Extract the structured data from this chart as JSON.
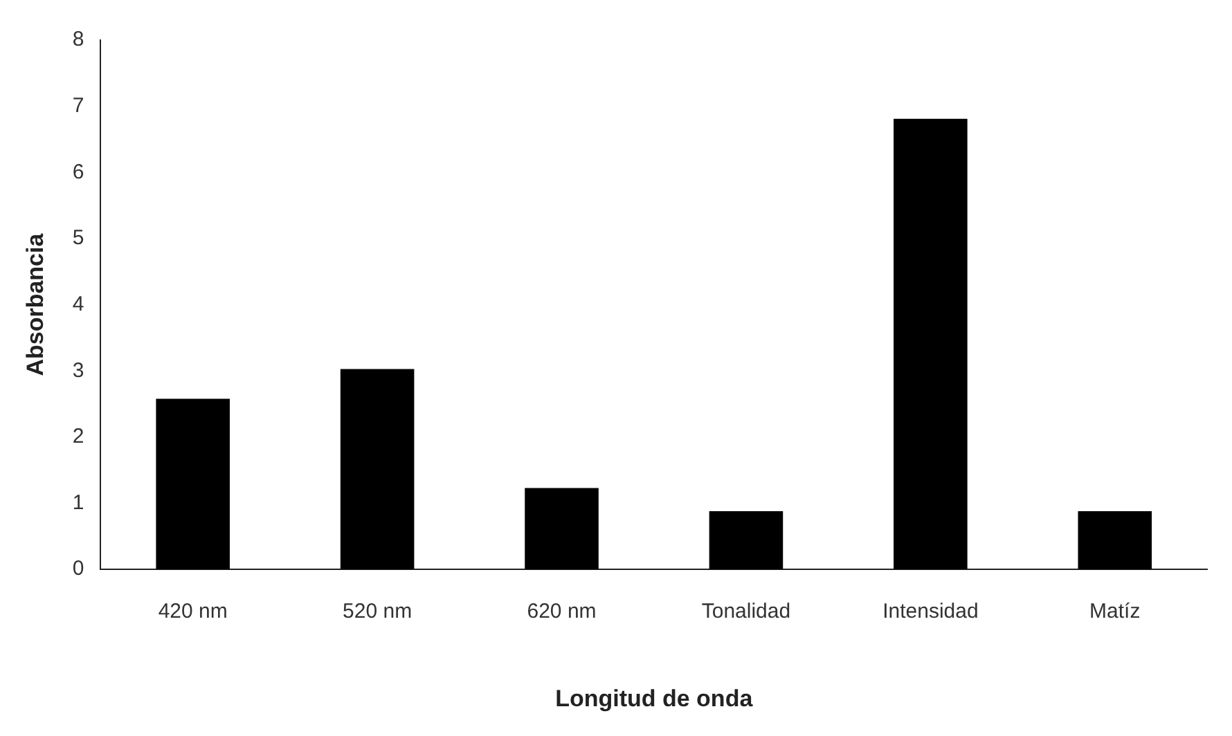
{
  "chart_data": {
    "type": "bar",
    "xlabel": "Longitud de onda",
    "ylabel": "Absorbancia",
    "categories": [
      "420 nm",
      "520 nm",
      "620 nm",
      "Tonalidad",
      "Intensidad",
      "Matíz"
    ],
    "values": [
      2.58,
      3.03,
      1.23,
      0.88,
      6.81,
      0.88
    ],
    "color": "#000000",
    "ylim": [
      0,
      8
    ],
    "yticks": [
      0,
      1,
      2,
      3,
      4,
      5,
      6,
      7,
      8
    ],
    "grid": false,
    "legend": false
  }
}
